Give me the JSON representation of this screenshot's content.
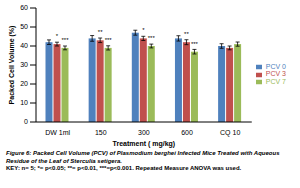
{
  "chart_data": {
    "type": "bar",
    "y_label": "Packed Cell Volume (%)",
    "x_label": "Treatment ( mg/kg)",
    "categories": [
      "DW 1ml",
      "150",
      "300",
      "600",
      "CQ 10"
    ],
    "series": [
      {
        "name": "PCV 0",
        "color": "#4f81bd",
        "values": [
          42,
          44,
          47,
          44,
          40
        ],
        "errors": [
          1.2,
          1.5,
          1.3,
          1.4,
          1.2
        ],
        "significance": [
          null,
          null,
          null,
          null,
          null
        ]
      },
      {
        "name": "PCV 3",
        "color": "#c0504d",
        "values": [
          41,
          43,
          44,
          42,
          39
        ],
        "errors": [
          1.0,
          1.2,
          1.1,
          1.3,
          1.0
        ],
        "significance": [
          "*",
          "**",
          "*",
          "**",
          null
        ]
      },
      {
        "name": "PCV 7",
        "color": "#9bbb59",
        "values": [
          39,
          39,
          40,
          37,
          41
        ],
        "errors": [
          1.0,
          1.1,
          1.0,
          1.2,
          1.1
        ],
        "significance": [
          "***",
          "***",
          "***",
          "***",
          null
        ]
      }
    ],
    "ylim": [
      0,
      60
    ],
    "yticks": [
      0,
      10,
      20,
      30,
      40,
      50,
      60
    ],
    "grid": false,
    "legend": "right"
  },
  "caption": {
    "title": "Figure 6: Packed Cell Volume (PCV) of Plasmodium berghei Infected Mice Treated with Aqueous Residue of the Leaf of Sterculia setigera.",
    "key": "KEY: n= 5; *= p<0.05; **= p<0.01, ***=p<0.001. Repeated Measure ANOVA was used."
  }
}
